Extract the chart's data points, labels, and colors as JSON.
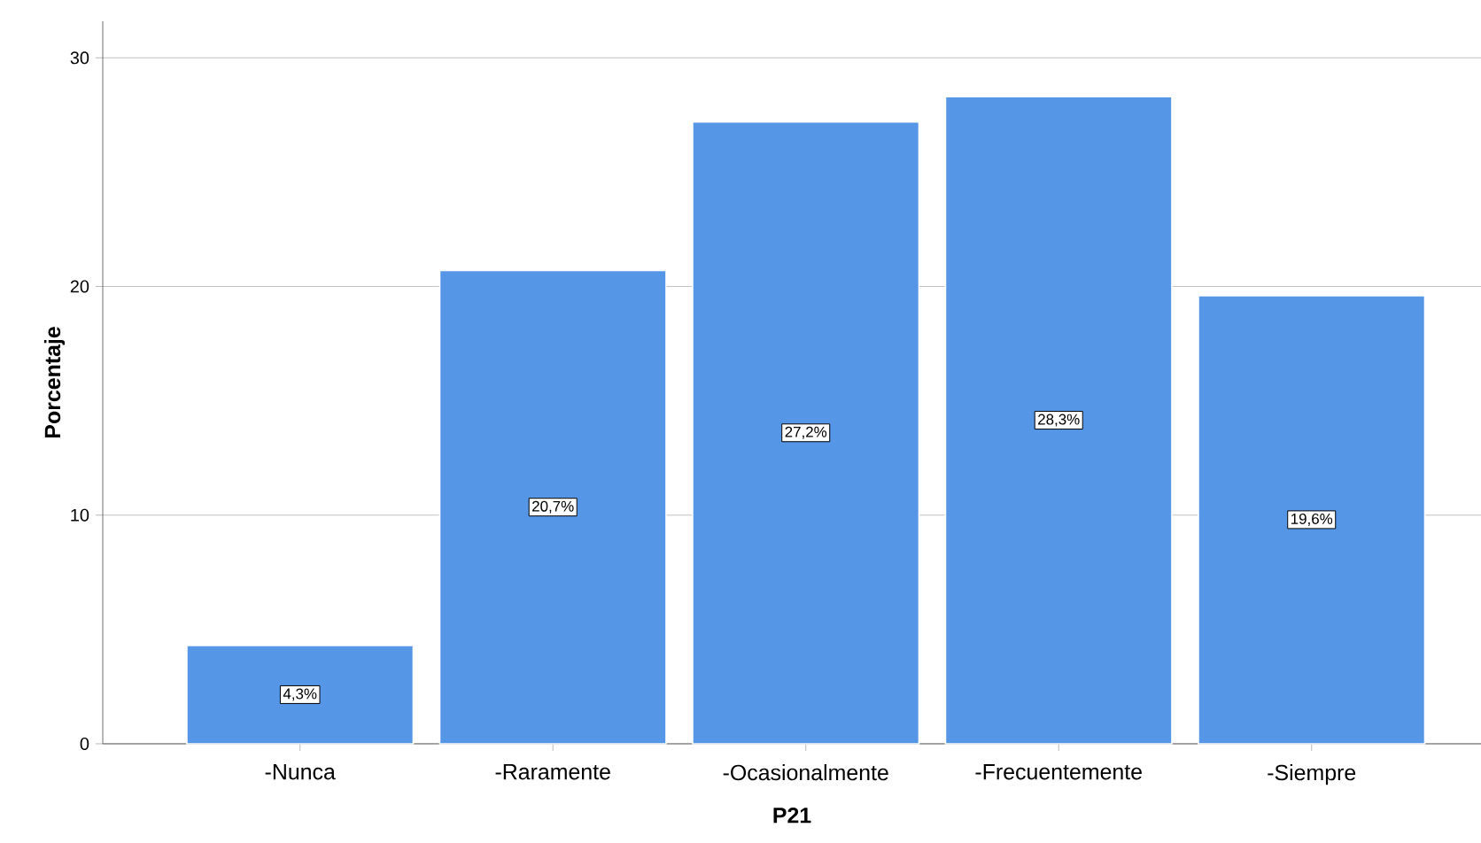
{
  "chart_data": {
    "type": "bar",
    "xlabel": "P21",
    "ylabel": "Porcentaje",
    "categories": [
      "-Nunca",
      "-Raramente",
      "-Ocasionalmente",
      "-Frecuentemente",
      "-Siempre"
    ],
    "values": [
      4.3,
      20.7,
      27.2,
      28.3,
      19.6
    ],
    "value_labels": [
      "4,3%",
      "20,7%",
      "27,2%",
      "28,3%",
      "19,6%"
    ],
    "color": "#5596e6",
    "ylim": [
      0,
      31.6
    ],
    "yticks": [
      0,
      10,
      20,
      30
    ],
    "grid": "y"
  }
}
